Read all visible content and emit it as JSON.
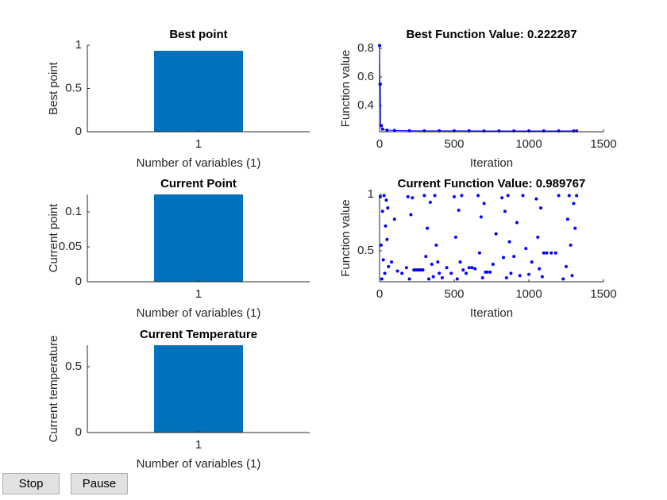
{
  "chart_data": [
    {
      "type": "bar",
      "title": "Best point",
      "xlabel": "Number of variables (1)",
      "ylabel": "Best point",
      "categories": [
        "1"
      ],
      "values": [
        0.936
      ],
      "color": "#0072bd",
      "xlim": [
        0,
        2
      ],
      "ylim": [
        0,
        1
      ],
      "yticks": [
        0,
        0.5,
        1
      ]
    },
    {
      "type": "line",
      "title": "Best Function Value: 0.222287",
      "xlabel": "Iteration",
      "ylabel": "Function value",
      "color": "#0000ff",
      "x": [
        0,
        1,
        3,
        5,
        8,
        12,
        20,
        50,
        100,
        200,
        300,
        400,
        500,
        600,
        700,
        800,
        900,
        1000,
        1100,
        1200,
        1300,
        1320
      ],
      "values": [
        0.82,
        0.82,
        0.55,
        0.55,
        0.26,
        0.26,
        0.235,
        0.228,
        0.226,
        0.224,
        0.223,
        0.223,
        0.223,
        0.223,
        0.2225,
        0.2225,
        0.2225,
        0.2225,
        0.2223,
        0.2223,
        0.222287,
        0.222287
      ],
      "xlim": [
        0,
        1500
      ],
      "xticks": [
        0,
        500,
        1000,
        1500
      ],
      "ylim": [
        0.217,
        0.822
      ],
      "yticks": [
        0.4,
        0.6,
        0.8
      ]
    },
    {
      "type": "bar",
      "title": "Current Point",
      "xlabel": "Number of variables (1)",
      "ylabel": "Current point",
      "categories": [
        "1"
      ],
      "values": [
        0.125
      ],
      "color": "#0072bd",
      "xlim": [
        0,
        2
      ],
      "ylim": [
        0,
        0.125
      ],
      "yticks": [
        0,
        0.05,
        0.1
      ]
    },
    {
      "type": "scatter",
      "title": "Current Function Value: 0.989767",
      "xlabel": "Iteration",
      "ylabel": "Function value",
      "color": "#0000ff",
      "x": [
        5,
        10,
        15,
        20,
        25,
        30,
        35,
        40,
        45,
        50,
        55,
        60,
        80,
        100,
        120,
        150,
        180,
        190,
        200,
        210,
        220,
        230,
        240,
        250,
        260,
        270,
        280,
        290,
        300,
        310,
        320,
        330,
        340,
        350,
        360,
        370,
        380,
        390,
        400,
        420,
        450,
        480,
        500,
        510,
        520,
        530,
        540,
        550,
        560,
        580,
        600,
        620,
        640,
        660,
        670,
        680,
        690,
        700,
        710,
        720,
        740,
        760,
        780,
        820,
        830,
        840,
        850,
        860,
        870,
        880,
        900,
        920,
        940,
        960,
        980,
        1000,
        1020,
        1050,
        1060,
        1070,
        1080,
        1090,
        1100,
        1120,
        1150,
        1180,
        1200,
        1230,
        1250,
        1260,
        1270,
        1280,
        1290,
        1300,
        1310,
        1320
      ],
      "values": [
        0.98,
        0.55,
        0.25,
        0.85,
        0.42,
        0.99,
        0.3,
        0.72,
        0.95,
        0.6,
        0.88,
        0.36,
        0.4,
        0.78,
        0.32,
        0.3,
        0.35,
        0.98,
        0.25,
        0.82,
        0.97,
        0.33,
        0.33,
        0.33,
        0.33,
        0.33,
        0.33,
        0.33,
        0.99,
        0.45,
        0.7,
        0.25,
        0.93,
        0.38,
        0.27,
        0.99,
        0.55,
        0.4,
        0.3,
        0.26,
        0.35,
        0.3,
        0.98,
        0.62,
        0.25,
        0.86,
        0.4,
        0.99,
        0.33,
        0.3,
        0.35,
        0.35,
        0.34,
        0.99,
        0.48,
        0.8,
        0.26,
        0.92,
        0.31,
        0.31,
        0.31,
        0.38,
        0.65,
        0.97,
        0.44,
        0.85,
        0.26,
        0.99,
        0.58,
        0.3,
        0.45,
        0.75,
        0.28,
        0.99,
        0.52,
        0.29,
        0.4,
        0.96,
        0.62,
        0.34,
        0.88,
        0.27,
        0.48,
        0.48,
        0.48,
        0.48,
        0.99,
        0.25,
        0.36,
        0.78,
        0.99,
        0.55,
        0.28,
        0.92,
        0.7,
        0.989767
      ],
      "xlim": [
        0,
        1500
      ],
      "xticks": [
        0,
        500,
        1000,
        1500
      ],
      "ylim": [
        0.225,
        1
      ],
      "yticks": [
        0.5,
        1
      ]
    },
    {
      "type": "bar",
      "title": "Current Temperature",
      "xlabel": "Number of variables (1)",
      "ylabel": "Current temperature",
      "categories": [
        "1"
      ],
      "values": [
        0.663
      ],
      "color": "#0072bd",
      "xlim": [
        0,
        2
      ],
      "ylim": [
        0,
        0.663
      ],
      "yticks": [
        0,
        0.5
      ]
    }
  ],
  "buttons": [
    "Stop",
    "Pause"
  ]
}
